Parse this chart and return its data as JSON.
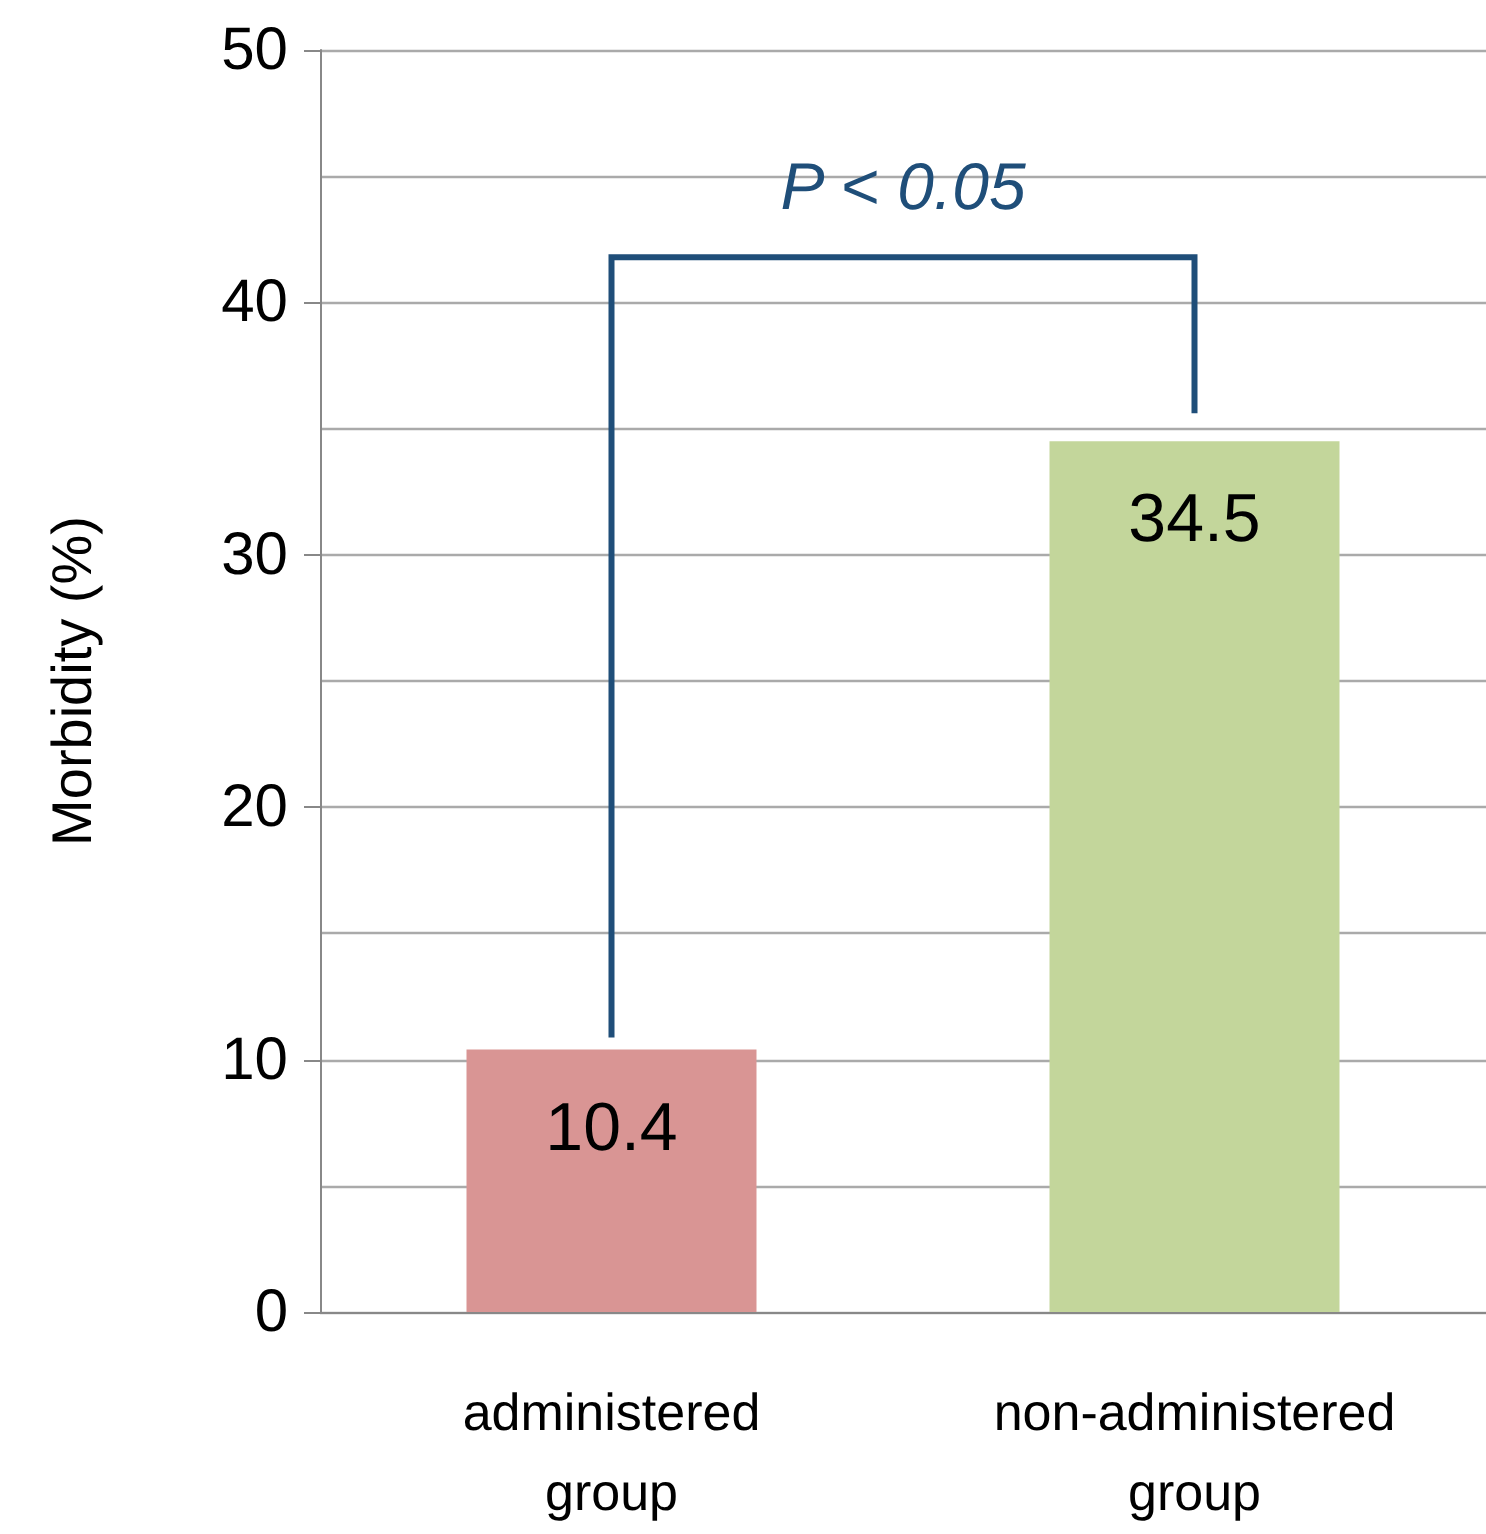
{
  "chart_data": {
    "type": "bar",
    "ylabel": "Morbidity (%)",
    "categories": [
      "administered group",
      "non-administered group"
    ],
    "values": [
      10.4,
      34.5
    ],
    "colors": [
      "#d99594",
      "#c3d69b"
    ],
    "ylim": [
      0,
      50
    ],
    "yticks": [
      0,
      {
        "value": 5,
        "label": null
      },
      10,
      {
        "value": 15,
        "label": null
      },
      20,
      {
        "value": 25,
        "label": null
      },
      30,
      {
        "value": 35,
        "label": null
      },
      40,
      {
        "value": 45,
        "label": null
      },
      50
    ],
    "grid": "y",
    "data_labels": true,
    "annotations": [
      "P < 0.05"
    ]
  }
}
